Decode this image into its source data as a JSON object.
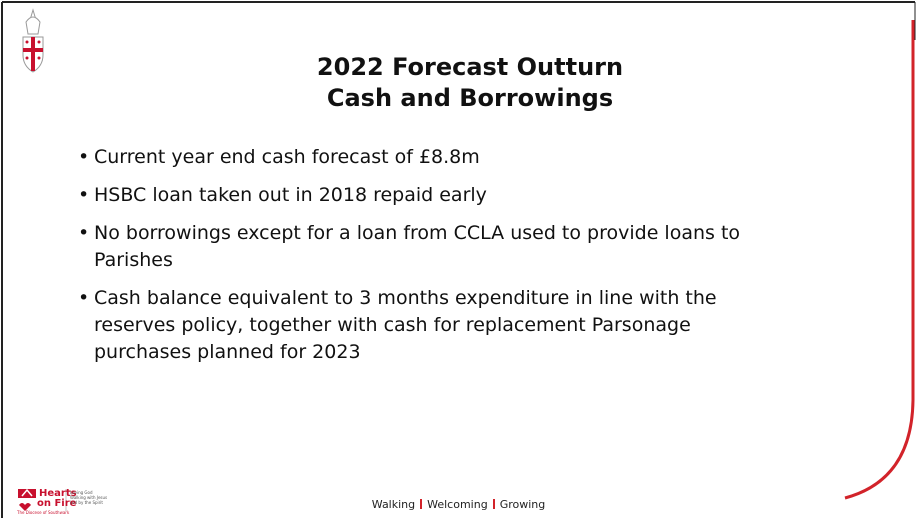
{
  "header": {
    "title_lines": [
      "2022 Forecast Outturn",
      "Cash and Borrowings"
    ]
  },
  "bullets": [
    {
      "lines": [
        "Current year end cash forecast of £8.8m"
      ]
    },
    {
      "lines": [
        "HSBC loan taken out in 2018 repaid early"
      ]
    },
    {
      "lines": [
        "No borrowings except for a loan from CCLA used to provide loans to",
        "Parishes"
      ]
    },
    {
      "lines": [
        "Cash balance equivalent to 3 months expenditure in line with the",
        "reserves policy, together with cash for replacement Parsonage",
        "purchases planned for 2023"
      ]
    }
  ],
  "footer": {
    "logo": {
      "name_lines": [
        "Hearts",
        "on Fire"
      ],
      "tagline_lines": [
        "Loving God",
        "Walking with Jesus",
        "Led by the Spirit"
      ],
      "diocese": "The Diocese of Southwark"
    },
    "motto": [
      "Walking",
      "Welcoming",
      "Growing"
    ]
  }
}
